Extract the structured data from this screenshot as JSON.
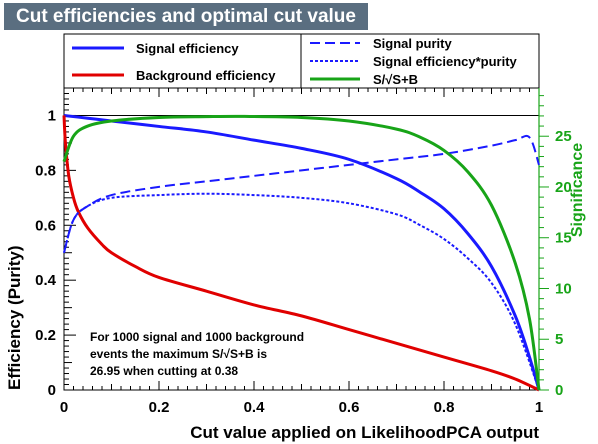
{
  "chart_data": {
    "type": "line",
    "title": "Cut efficiencies and optimal cut value",
    "xlabel": "Cut value applied on LikelihoodPCA output",
    "ylabel": "Efficiency (Purity)",
    "y2label": "Significance",
    "xlim": [
      0,
      1
    ],
    "ylim": [
      0,
      1.1
    ],
    "y2lim": [
      0,
      29.75
    ],
    "x_ticks": [
      "0",
      "0.2",
      "0.4",
      "0.6",
      "0.8",
      "1"
    ],
    "y_ticks": [
      "0",
      "0.2",
      "0.4",
      "0.6",
      "0.8",
      "1"
    ],
    "y2_ticks": [
      "0",
      "5",
      "10",
      "15",
      "20",
      "25"
    ],
    "grid": false,
    "legend_position": "top",
    "colors": {
      "signal": "#1a1aff",
      "background": "#e00000",
      "significance": "#18a418",
      "title_bg": "#5a6e80"
    },
    "series": [
      {
        "name": "Signal efficiency",
        "axis": "left",
        "style": "solid",
        "color": "#1a1aff",
        "x": [
          0,
          0.05,
          0.1,
          0.2,
          0.3,
          0.4,
          0.5,
          0.6,
          0.7,
          0.75,
          0.8,
          0.85,
          0.9,
          0.95,
          0.98,
          1.0
        ],
        "y": [
          1.0,
          0.99,
          0.98,
          0.96,
          0.94,
          0.91,
          0.88,
          0.84,
          0.77,
          0.72,
          0.66,
          0.57,
          0.45,
          0.27,
          0.12,
          0.0
        ]
      },
      {
        "name": "Background efficiency",
        "axis": "left",
        "style": "solid",
        "color": "#e00000",
        "x": [
          0,
          0.003,
          0.01,
          0.02,
          0.03,
          0.05,
          0.08,
          0.1,
          0.15,
          0.2,
          0.3,
          0.4,
          0.5,
          0.6,
          0.7,
          0.8,
          0.9,
          0.95,
          1.0
        ],
        "y": [
          1.0,
          0.9,
          0.78,
          0.7,
          0.65,
          0.59,
          0.53,
          0.5,
          0.45,
          0.41,
          0.36,
          0.31,
          0.27,
          0.22,
          0.17,
          0.12,
          0.07,
          0.04,
          0.0
        ]
      },
      {
        "name": "Signal purity",
        "axis": "left",
        "style": "dashed",
        "color": "#1a1aff",
        "x": [
          0,
          0.02,
          0.05,
          0.1,
          0.2,
          0.3,
          0.4,
          0.5,
          0.6,
          0.7,
          0.8,
          0.9,
          0.95,
          0.98,
          1.0
        ],
        "y": [
          0.5,
          0.62,
          0.67,
          0.71,
          0.74,
          0.76,
          0.78,
          0.8,
          0.82,
          0.84,
          0.86,
          0.89,
          0.91,
          0.92,
          0.82
        ]
      },
      {
        "name": "Signal efficiency*purity",
        "axis": "left",
        "style": "dotted",
        "color": "#1a1aff",
        "x": [
          0,
          0.02,
          0.05,
          0.1,
          0.2,
          0.3,
          0.4,
          0.5,
          0.6,
          0.7,
          0.75,
          0.8,
          0.85,
          0.9,
          0.95,
          1.0
        ],
        "y": [
          0.5,
          0.62,
          0.67,
          0.7,
          0.71,
          0.715,
          0.71,
          0.7,
          0.68,
          0.64,
          0.6,
          0.55,
          0.48,
          0.39,
          0.24,
          0.0
        ]
      },
      {
        "name": "S/√S+B",
        "axis": "right",
        "style": "solid",
        "color": "#18a418",
        "x": [
          0,
          0.02,
          0.05,
          0.1,
          0.2,
          0.3,
          0.38,
          0.5,
          0.6,
          0.7,
          0.75,
          0.8,
          0.85,
          0.9,
          0.95,
          0.98,
          1.0
        ],
        "y": [
          22.5,
          25.0,
          26.0,
          26.5,
          26.85,
          26.93,
          26.95,
          26.85,
          26.5,
          25.7,
          24.9,
          23.6,
          21.5,
          18.2,
          12.5,
          7.0,
          0.0
        ]
      }
    ],
    "annotation": [
      "For 1000 signal and 1000 background",
      "events the maximum S/√S+B is",
      "26.95 when cutting at  0.38"
    ]
  }
}
